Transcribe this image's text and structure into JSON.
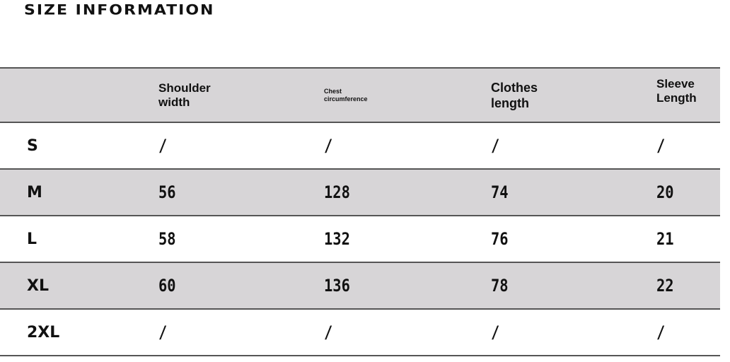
{
  "title": "SIZE INFORMATION",
  "headers": [
    "",
    "Shoulder width",
    "Chest circumference",
    "Clothes length",
    "Sleeve Length"
  ],
  "header_lines": [
    [
      "",
      ""
    ],
    [
      "Shoulder",
      "width"
    ],
    [
      "Chest",
      "circumference"
    ],
    [
      "Clothes",
      "length"
    ],
    [
      "Sleeve",
      "Length"
    ]
  ],
  "rows": [
    [
      "S",
      "/",
      "/",
      "/",
      "/"
    ],
    [
      "M",
      "56",
      "128",
      "74",
      "20"
    ],
    [
      "L",
      "58",
      "132",
      "76",
      "21"
    ],
    [
      "XL",
      "60",
      "136",
      "78",
      "22"
    ],
    [
      "2XL",
      "/",
      "/",
      "/",
      "/"
    ]
  ],
  "colors": {
    "shade": "#d7d5d7",
    "rule": "#555555"
  }
}
